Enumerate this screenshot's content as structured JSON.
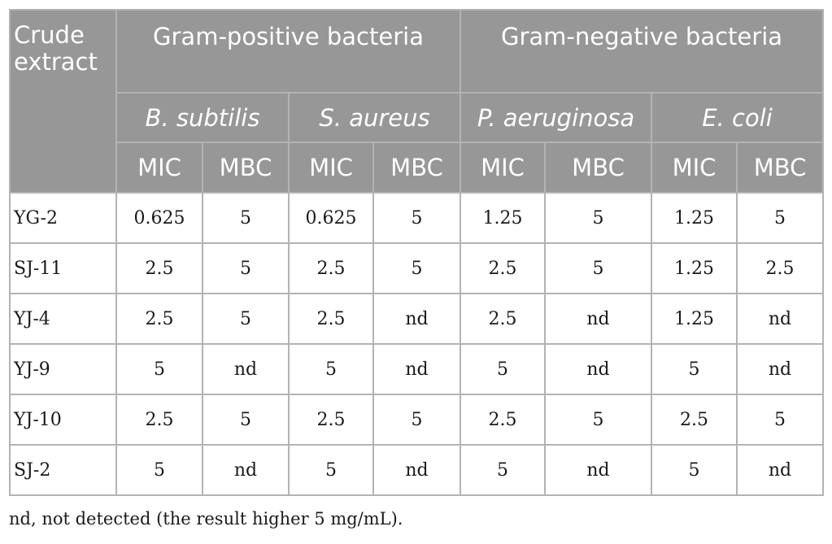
{
  "table": {
    "corner_line1": "Crude",
    "corner_line2": "extract",
    "groups": [
      "Gram-positive bacteria",
      "Gram-negative bacteria"
    ],
    "species": [
      "B. subtilis",
      "S. aureus",
      "P. aeruginosa",
      "E. coli"
    ],
    "measures": [
      "MIC",
      "MBC",
      "MIC",
      "MBC",
      "MIC",
      "MBC",
      "MIC",
      "MBC"
    ],
    "rows": [
      {
        "name": "YG-2",
        "values": [
          "0.625",
          "5",
          "0.625",
          "5",
          "1.25",
          "5",
          "1.25",
          "5"
        ]
      },
      {
        "name": "SJ-11",
        "values": [
          "2.5",
          "5",
          "2.5",
          "5",
          "2.5",
          "5",
          "1.25",
          "2.5"
        ]
      },
      {
        "name": "YJ-4",
        "values": [
          "2.5",
          "5",
          "2.5",
          "nd",
          "2.5",
          "nd",
          "1.25",
          "nd"
        ]
      },
      {
        "name": "YJ-9",
        "values": [
          "5",
          "nd",
          "5",
          "nd",
          "5",
          "nd",
          "5",
          "nd"
        ]
      },
      {
        "name": "YJ-10",
        "values": [
          "2.5",
          "5",
          "2.5",
          "5",
          "2.5",
          "5",
          "2.5",
          "5"
        ]
      },
      {
        "name": "SJ-2",
        "values": [
          "5",
          "nd",
          "5",
          "nd",
          "5",
          "nd",
          "5",
          "nd"
        ]
      }
    ]
  },
  "footnote": "nd, not detected (the result higher 5 mg/mL).",
  "colors": {
    "header_bg": "#979797",
    "header_text": "#ffffff",
    "border": "#b3b3b3",
    "body_text": "#1a1a1a"
  }
}
